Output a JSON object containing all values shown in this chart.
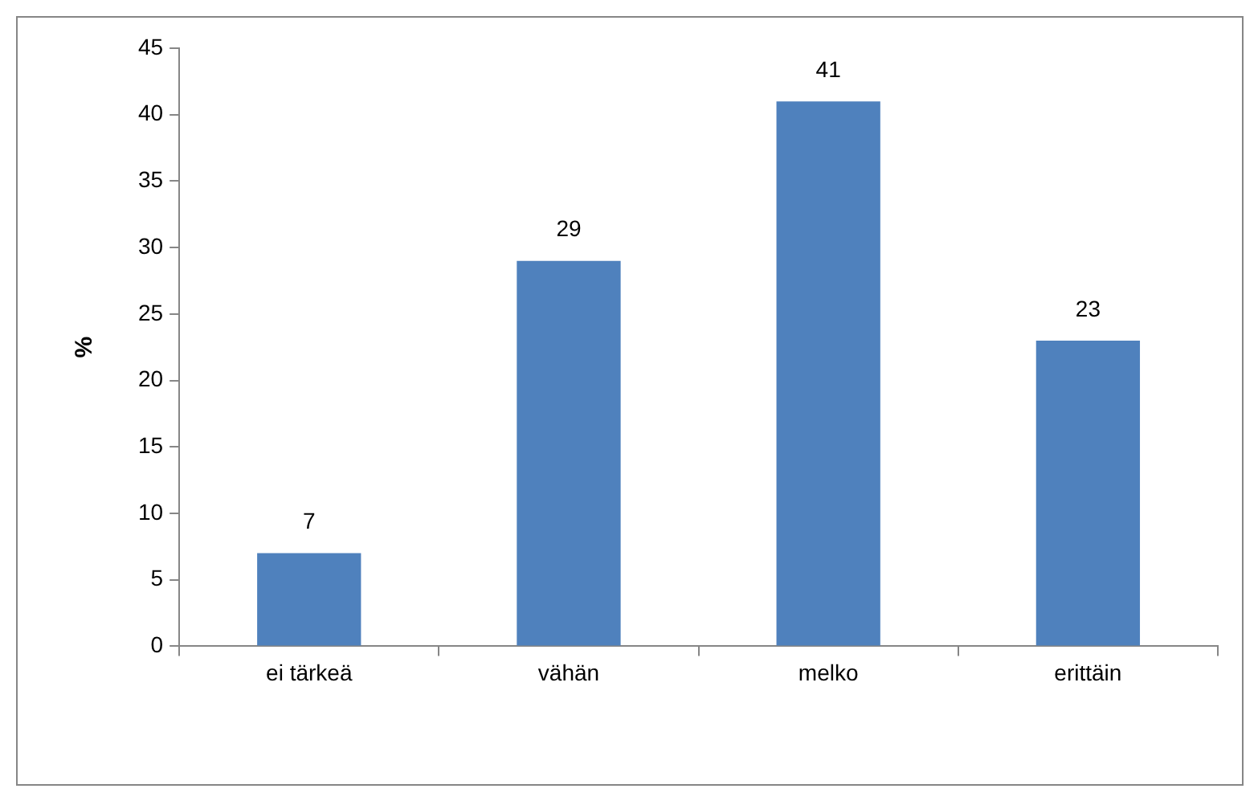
{
  "chart_data": {
    "type": "bar",
    "ylabel": "%",
    "categories": [
      "ei tärkeä",
      "vähän",
      "melko",
      "erittäin"
    ],
    "values": [
      7,
      29,
      41,
      23
    ],
    "color": "#4f81bd",
    "ylim": [
      0,
      45
    ],
    "yticks": [
      0,
      5,
      10,
      15,
      20,
      25,
      30,
      35,
      40,
      45
    ],
    "data_labels": true,
    "legend": false
  }
}
